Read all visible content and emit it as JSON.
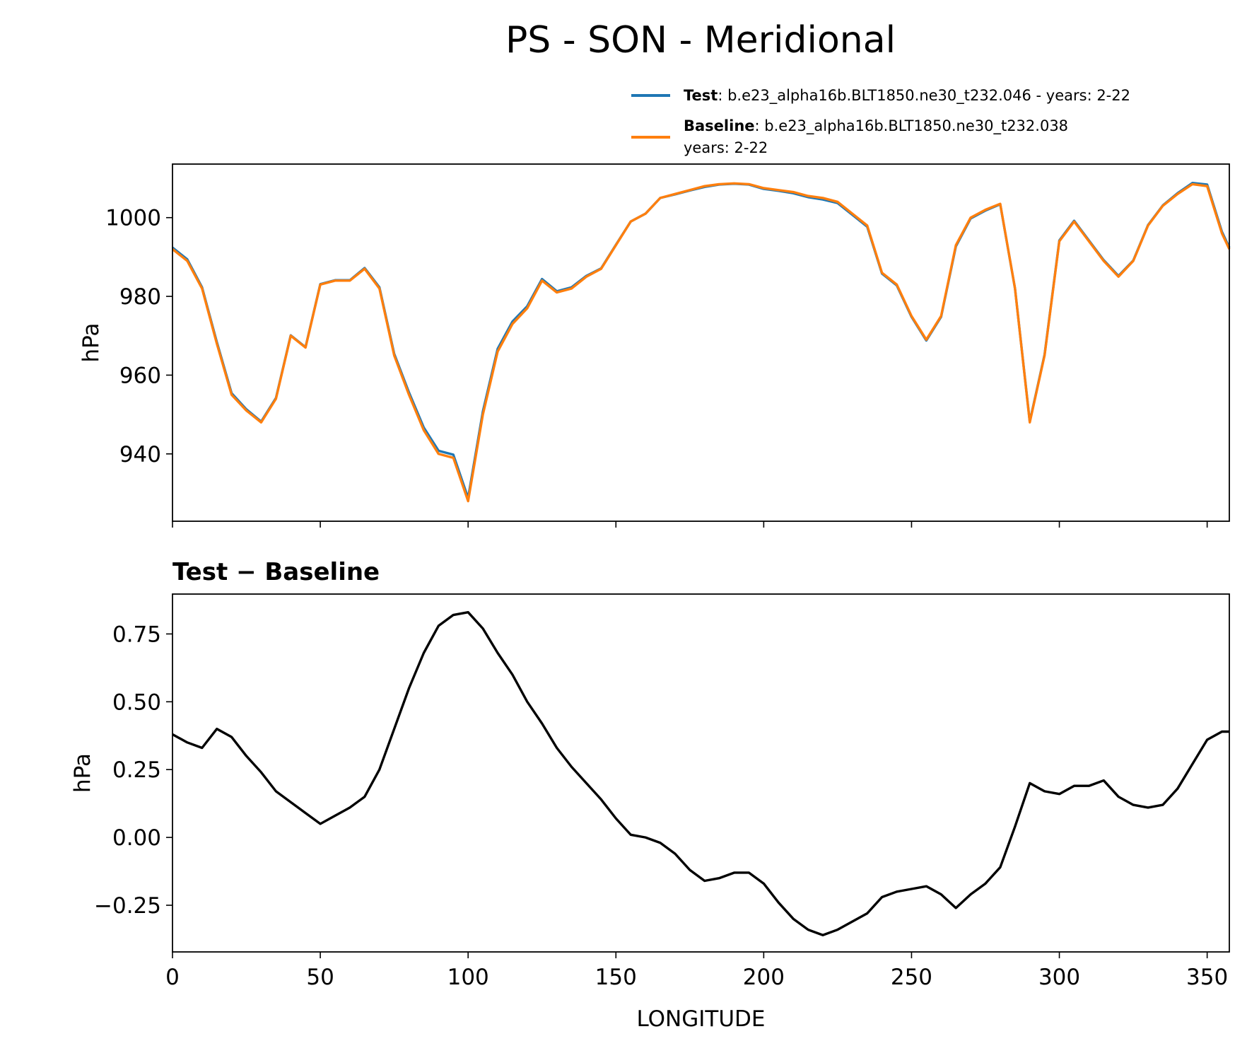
{
  "title": "PS - SON - Meridional",
  "chart_data": [
    {
      "type": "line",
      "ylabel": "hPa",
      "x": [
        0,
        5,
        10,
        15,
        20,
        25,
        30,
        35,
        40,
        45,
        50,
        55,
        60,
        65,
        70,
        75,
        80,
        85,
        90,
        95,
        100,
        105,
        110,
        115,
        120,
        125,
        130,
        135,
        140,
        145,
        150,
        155,
        160,
        165,
        170,
        175,
        180,
        185,
        190,
        195,
        200,
        205,
        210,
        215,
        220,
        225,
        230,
        235,
        240,
        245,
        250,
        255,
        260,
        265,
        270,
        275,
        280,
        285,
        290,
        295,
        300,
        305,
        310,
        315,
        320,
        325,
        330,
        335,
        340,
        345,
        350,
        355,
        357.5
      ],
      "series": [
        {
          "name": "Test",
          "label": ": b.e23_alpha16b.BLT1850.ne30_t232.046 - years: 2-22",
          "color": "#1f77b4",
          "values": [
            992.4,
            989.4,
            982.3,
            968.4,
            955.4,
            951.3,
            948.2,
            954.2,
            970.1,
            967.1,
            983.1,
            984.1,
            984.1,
            987.2,
            982.3,
            965.4,
            955.6,
            946.7,
            940.8,
            939.8,
            928.8,
            950.8,
            966.7,
            973.6,
            977.5,
            984.4,
            981.3,
            982.3,
            985.2,
            987.1,
            993.1,
            999.0,
            1001.0,
            1005.0,
            1005.9,
            1006.9,
            1007.8,
            1008.4,
            1008.6,
            1008.4,
            1007.3,
            1006.8,
            1006.2,
            1005.2,
            1004.6,
            1003.7,
            1000.7,
            997.7,
            985.8,
            982.8,
            974.8,
            968.8,
            974.8,
            992.7,
            999.8,
            1001.8,
            1003.4,
            982.0,
            948.2,
            965.2,
            994.2,
            999.2,
            994.2,
            989.2,
            985.2,
            989.1,
            998.1,
            1003.1,
            1006.2,
            1008.8,
            1008.4,
            996.4,
            992.4
          ]
        },
        {
          "name": "Baseline",
          "label": [
            ": b.e23_alpha16b.BLT1850.ne30_t232.038",
            "years: 2-22"
          ],
          "color": "#ff7f0e",
          "values": [
            992,
            989,
            982,
            968,
            955,
            951,
            948,
            954,
            970,
            967,
            983,
            984,
            984,
            987,
            982,
            965,
            955,
            946,
            940,
            939,
            928,
            950,
            966,
            973,
            977,
            984,
            981,
            982,
            985,
            987,
            993,
            999,
            1001,
            1005,
            1006,
            1007,
            1008,
            1008.5,
            1008.7,
            1008.5,
            1007.5,
            1007,
            1006.5,
            1005.5,
            1005,
            1004,
            1001,
            998,
            986,
            983,
            975,
            969,
            975,
            993,
            1000,
            1002,
            1003.5,
            982,
            948,
            965,
            994,
            999,
            994,
            989,
            985,
            989,
            998,
            1003,
            1006,
            1008.5,
            1008,
            996,
            992
          ]
        }
      ],
      "xlim": [
        0,
        357.5
      ],
      "xticks": [
        0,
        50,
        100,
        150,
        200,
        250,
        300,
        350
      ],
      "ylim": [
        922.9,
        1013.6
      ],
      "yticks": [
        940,
        960,
        980,
        1000
      ]
    },
    {
      "type": "line",
      "title": "Test − Baseline",
      "xlabel": "LONGITUDE",
      "ylabel": "hPa",
      "x": [
        0,
        5,
        10,
        15,
        20,
        25,
        30,
        35,
        40,
        45,
        50,
        55,
        60,
        65,
        70,
        75,
        80,
        85,
        90,
        95,
        100,
        105,
        110,
        115,
        120,
        125,
        130,
        135,
        140,
        145,
        150,
        155,
        160,
        165,
        170,
        175,
        180,
        185,
        190,
        195,
        200,
        205,
        210,
        215,
        220,
        225,
        230,
        235,
        240,
        245,
        250,
        255,
        260,
        265,
        270,
        275,
        280,
        285,
        290,
        295,
        300,
        305,
        310,
        315,
        320,
        325,
        330,
        335,
        340,
        345,
        350,
        355,
        357.5
      ],
      "color": "#000000",
      "values": [
        0.38,
        0.35,
        0.33,
        0.4,
        0.37,
        0.3,
        0.24,
        0.17,
        0.13,
        0.09,
        0.05,
        0.08,
        0.11,
        0.15,
        0.25,
        0.4,
        0.55,
        0.68,
        0.78,
        0.82,
        0.83,
        0.77,
        0.68,
        0.6,
        0.5,
        0.42,
        0.33,
        0.26,
        0.2,
        0.14,
        0.07,
        0.01,
        0,
        -0.02,
        -0.06,
        -0.12,
        -0.16,
        -0.15,
        -0.13,
        -0.13,
        -0.17,
        -0.24,
        -0.3,
        -0.34,
        -0.36,
        -0.34,
        -0.31,
        -0.28,
        -0.22,
        -0.2,
        -0.19,
        -0.18,
        -0.21,
        -0.26,
        -0.21,
        -0.17,
        -0.11,
        0.04,
        0.2,
        0.17,
        0.16,
        0.19,
        0.19,
        0.21,
        0.15,
        0.12,
        0.11,
        0.12,
        0.18,
        0.27,
        0.36,
        0.39,
        0.39
      ],
      "xlim": [
        0,
        357.5
      ],
      "xticks": [
        0,
        50,
        100,
        150,
        200,
        250,
        300,
        350
      ],
      "ylim": [
        -0.422,
        0.897
      ],
      "yticks": [
        {
          "value": -0.25,
          "label": "−0.25"
        },
        {
          "value": 0,
          "label": "0.00"
        },
        0.25,
        {
          "value": 0.5,
          "label": "0.50"
        },
        0.75
      ]
    }
  ]
}
